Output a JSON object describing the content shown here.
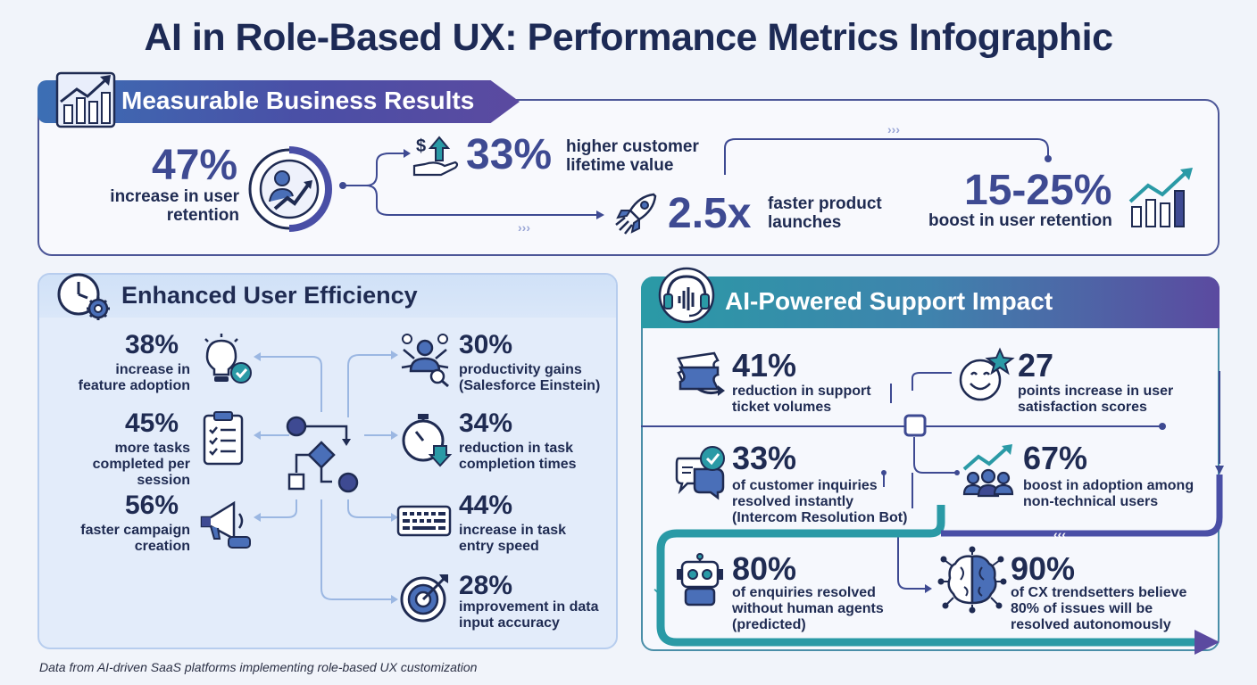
{
  "title": "AI in Role-Based UX: Performance Metrics Infographic",
  "colors": {
    "primary": "#3e4a92",
    "teal": "#2a9aa6",
    "purple": "#5b4aa0",
    "dark": "#1f2b52"
  },
  "business_results": {
    "heading": "Measurable Business Results",
    "icon": "growth-chart-icon",
    "metrics": [
      {
        "value": "47%",
        "label_lines": [
          "increase in user",
          "retention"
        ],
        "icon": "user-growth-icon"
      },
      {
        "value": "33%",
        "label_lines": [
          "higher customer",
          "lifetime value"
        ],
        "icon": "money-hand-icon"
      },
      {
        "value": "2.5x",
        "label_lines": [
          "faster product",
          "launches"
        ],
        "icon": "rocket-icon"
      },
      {
        "value": "15-25%",
        "label_lines": [
          "boost in user retention"
        ],
        "icon": "bar-growth-icon"
      }
    ]
  },
  "user_efficiency": {
    "heading": "Enhanced User Efficiency",
    "icon": "clock-gear-icon",
    "left_metrics": [
      {
        "value": "38%",
        "label_lines": [
          "increase in",
          "feature adoption"
        ],
        "icon": "lightbulb-check-icon"
      },
      {
        "value": "45%",
        "label_lines": [
          "more tasks",
          "completed per session"
        ],
        "icon": "clipboard-checklist-icon"
      },
      {
        "value": "56%",
        "label_lines": [
          "faster campaign",
          "creation"
        ],
        "icon": "megaphone-icon"
      }
    ],
    "right_metrics": [
      {
        "value": "30%",
        "label_lines": [
          "productivity gains",
          "(Salesforce Einstein)"
        ],
        "icon": "multitask-person-icon"
      },
      {
        "value": "34%",
        "label_lines": [
          "reduction in task",
          "completion times"
        ],
        "icon": "stopwatch-icon"
      },
      {
        "value": "44%",
        "label_lines": [
          "increase in task",
          "entry speed"
        ],
        "icon": "keyboard-icon"
      },
      {
        "value": "28%",
        "label_lines": [
          "improvement in data",
          "input accuracy"
        ],
        "icon": "target-icon"
      }
    ]
  },
  "support_impact": {
    "heading": "AI-Powered Support Impact",
    "icon": "headset-icon",
    "metrics": [
      {
        "value": "41%",
        "label_lines": [
          "reduction in support",
          "ticket volumes"
        ],
        "icon": "ticket-icon"
      },
      {
        "value": "27",
        "label_lines": [
          "points increase in user",
          "satisfaction scores"
        ],
        "icon": "smiley-star-icon"
      },
      {
        "value": "33%",
        "label_lines": [
          "of customer inquiries",
          "resolved instantly",
          "(Intercom Resolution Bot)"
        ],
        "icon": "chat-check-icon"
      },
      {
        "value": "67%",
        "label_lines": [
          "boost in adoption among",
          "non-technical users"
        ],
        "icon": "team-growth-icon"
      },
      {
        "value": "80%",
        "label_lines": [
          "of enquiries resolved",
          "without human agents",
          "(predicted)"
        ],
        "icon": "robot-icon"
      },
      {
        "value": "90%",
        "label_lines": [
          "of CX trendsetters believe",
          "80% of issues will be",
          "resolved autonomously"
        ],
        "icon": "ai-brain-icon"
      }
    ]
  },
  "footnote": "Data from AI-driven SaaS platforms implementing role-based UX customization"
}
